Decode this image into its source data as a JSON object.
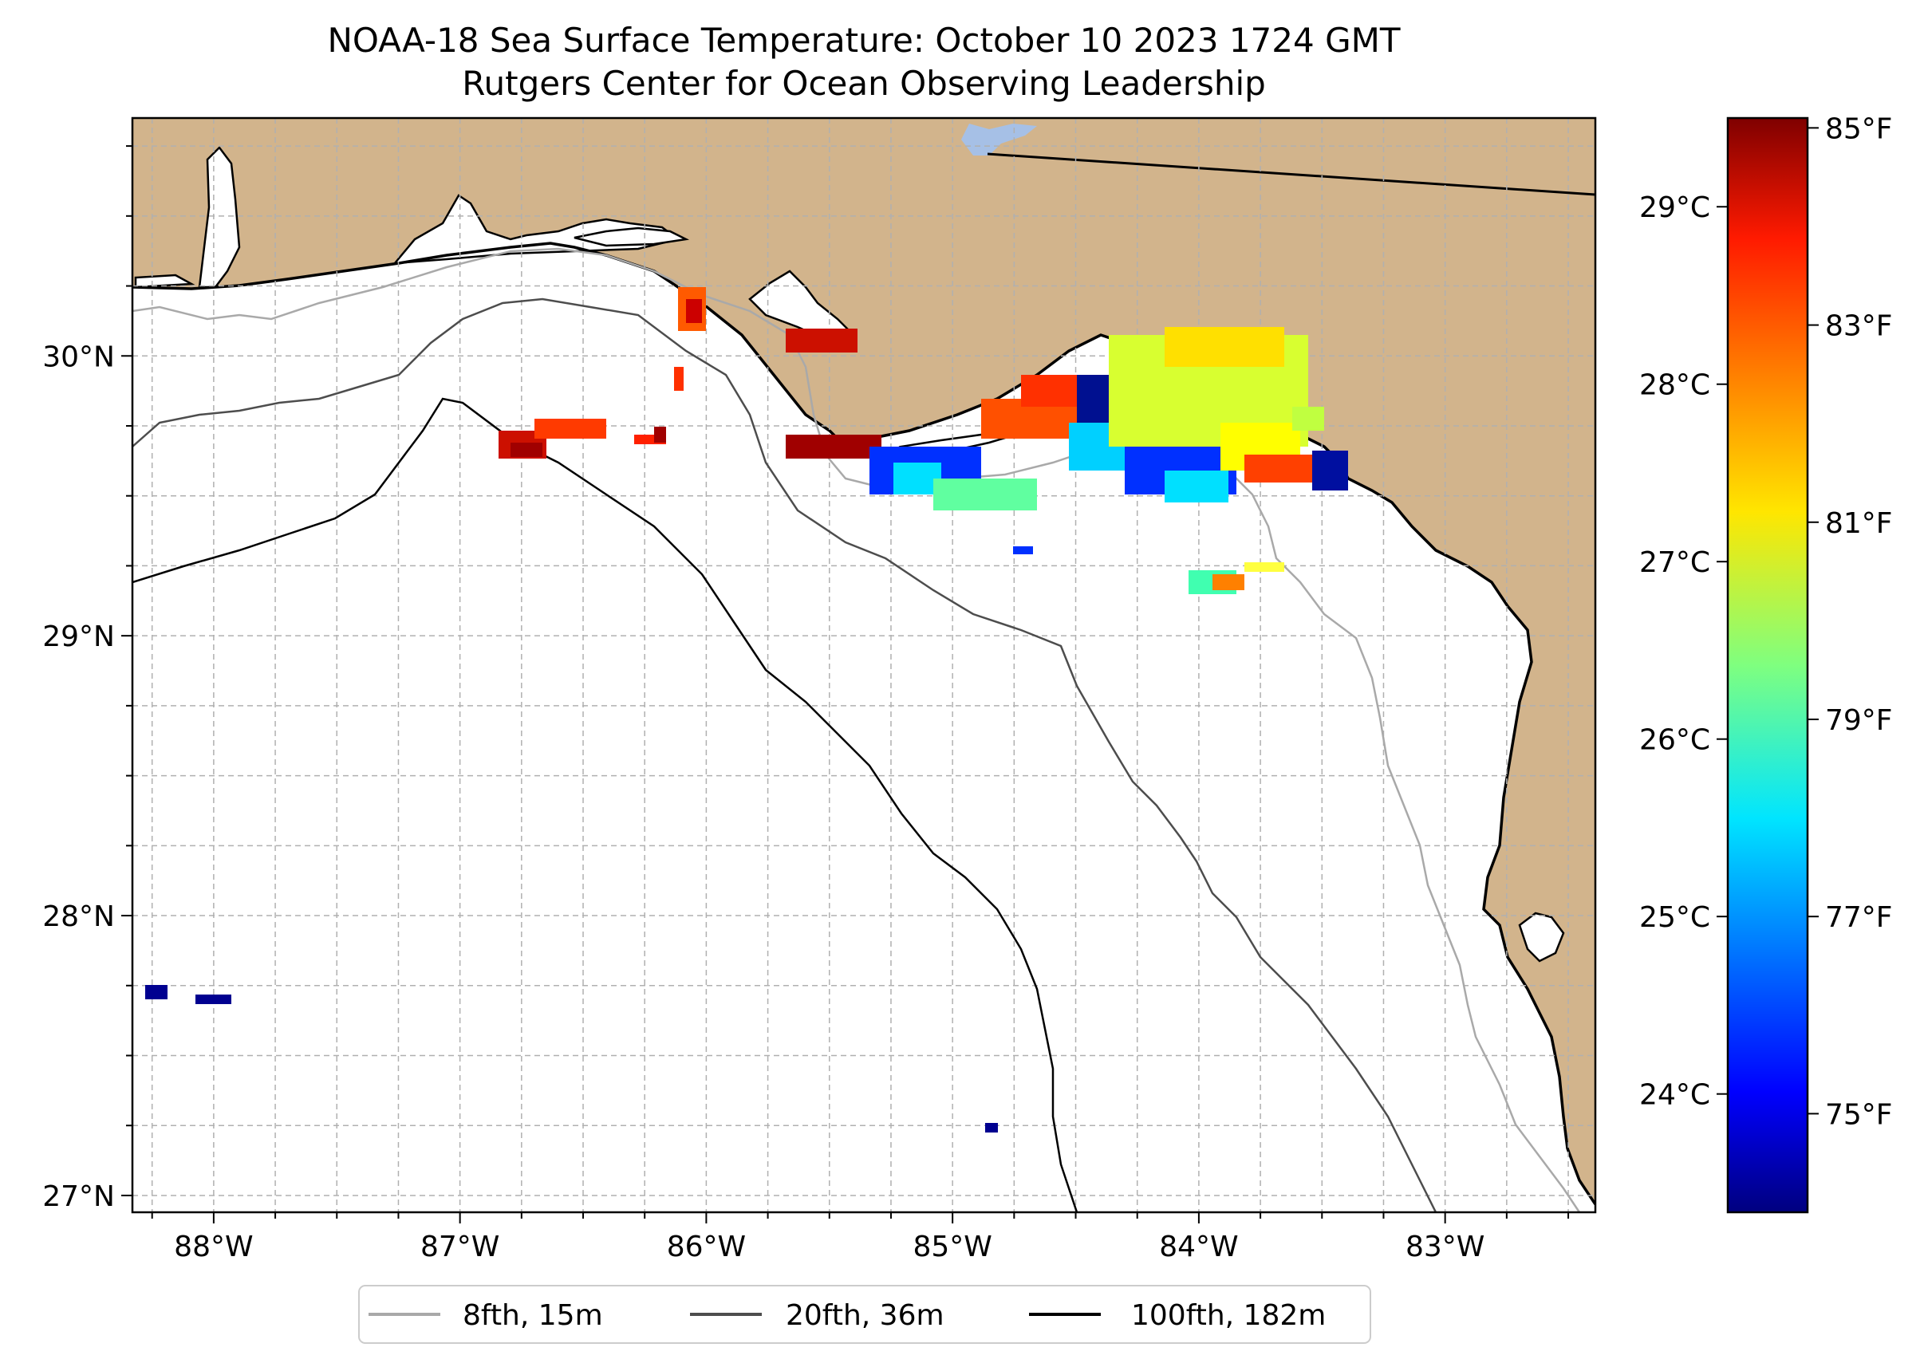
{
  "title": {
    "line1": "NOAA-18 Sea Surface Temperature: October 10 2023 1724 GMT",
    "line2": "Rutgers Center for Ocean Observing Leadership"
  },
  "map": {
    "lon_range": [
      -88.33,
      -82.39
    ],
    "lat_range": [
      26.94,
      30.85
    ],
    "x_ticks": [
      {
        "lon": -88,
        "label": "88°W"
      },
      {
        "lon": -87,
        "label": "87°W"
      },
      {
        "lon": -86,
        "label": "86°W"
      },
      {
        "lon": -85,
        "label": "85°W"
      },
      {
        "lon": -84,
        "label": "84°W"
      },
      {
        "lon": -83,
        "label": "83°W"
      }
    ],
    "y_ticks": [
      {
        "lat": 30,
        "label": "30°N"
      },
      {
        "lat": 29,
        "label": "29°N"
      },
      {
        "lat": 28,
        "label": "28°N"
      },
      {
        "lat": 27,
        "label": "27°N"
      }
    ],
    "land_color": "#d2b48c",
    "water_color": "#ffffff",
    "lake_color": "#a6c0e6"
  },
  "legend": {
    "items": [
      {
        "label": "8fth, 15m",
        "color": "#a9a9a9"
      },
      {
        "label": "20fth, 36m",
        "color": "#4d4d4d"
      },
      {
        "label": "100fth, 182m",
        "color": "#000000"
      }
    ]
  },
  "colorbar": {
    "celsius_ticks": [
      {
        "value": 29,
        "label": "29°C"
      },
      {
        "value": 28,
        "label": "28°C"
      },
      {
        "value": 27,
        "label": "27°C"
      },
      {
        "value": 26,
        "label": "26°C"
      },
      {
        "value": 25,
        "label": "25°C"
      },
      {
        "value": 24,
        "label": "24°C"
      }
    ],
    "fahrenheit_ticks": [
      {
        "value": 85,
        "label": "85°F"
      },
      {
        "value": 83,
        "label": "83°F"
      },
      {
        "value": 81,
        "label": "81°F"
      },
      {
        "value": 79,
        "label": "79°F"
      },
      {
        "value": 77,
        "label": "77°F"
      },
      {
        "value": 75,
        "label": "75°F"
      }
    ],
    "range_f": [
      74.0,
      85.1
    ],
    "colors": [
      "#00007f",
      "#0000ff",
      "#007fff",
      "#00ffff",
      "#7fff7f",
      "#ffff00",
      "#ff7f00",
      "#ff0000",
      "#7f0000"
    ]
  }
}
